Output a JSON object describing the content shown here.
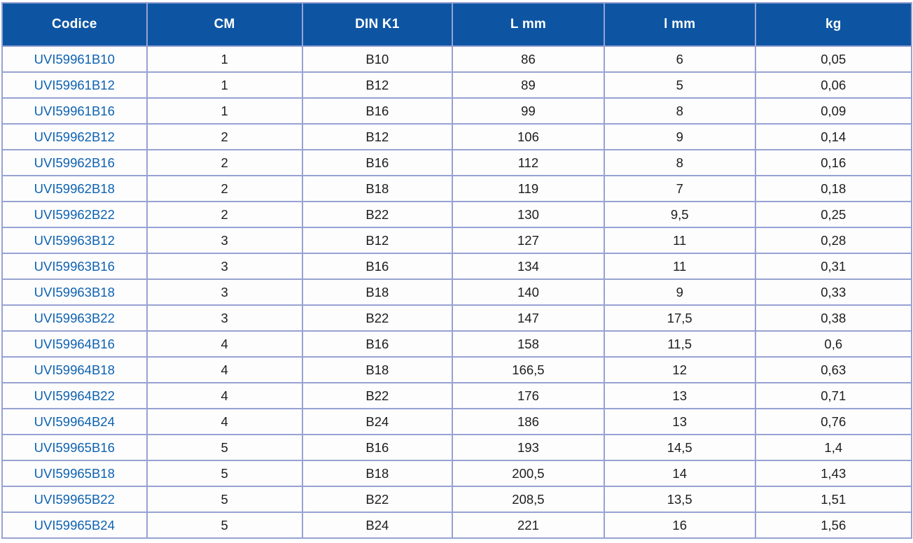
{
  "table": {
    "headers": [
      "Codice",
      "CM",
      "DIN K1",
      "L mm",
      "l mm",
      "kg"
    ],
    "rows": [
      [
        "UVI59961B10",
        "1",
        "B10",
        "86",
        "6",
        "0,05"
      ],
      [
        "UVI59961B12",
        "1",
        "B12",
        "89",
        "5",
        "0,06"
      ],
      [
        "UVI59961B16",
        "1",
        "B16",
        "99",
        "8",
        "0,09"
      ],
      [
        "UVI59962B12",
        "2",
        "B12",
        "106",
        "9",
        "0,14"
      ],
      [
        "UVI59962B16",
        "2",
        "B16",
        "112",
        "8",
        "0,16"
      ],
      [
        "UVI59962B18",
        "2",
        "B18",
        "119",
        "7",
        "0,18"
      ],
      [
        "UVI59962B22",
        "2",
        "B22",
        "130",
        "9,5",
        "0,25"
      ],
      [
        "UVI59963B12",
        "3",
        "B12",
        "127",
        "11",
        "0,28"
      ],
      [
        "UVI59963B16",
        "3",
        "B16",
        "134",
        "11",
        "0,31"
      ],
      [
        "UVI59963B18",
        "3",
        "B18",
        "140",
        "9",
        "0,33"
      ],
      [
        "UVI59963B22",
        "3",
        "B22",
        "147",
        "17,5",
        "0,38"
      ],
      [
        "UVI59964B16",
        "4",
        "B16",
        "158",
        "11,5",
        "0,6"
      ],
      [
        "UVI59964B18",
        "4",
        "B18",
        "166,5",
        "12",
        "0,63"
      ],
      [
        "UVI59964B22",
        "4",
        "B22",
        "176",
        "13",
        "0,71"
      ],
      [
        "UVI59964B24",
        "4",
        "B24",
        "186",
        "13",
        "0,76"
      ],
      [
        "UVI59965B16",
        "5",
        "B16",
        "193",
        "14,5",
        "1,4"
      ],
      [
        "UVI59965B18",
        "5",
        "B18",
        "200,5",
        "14",
        "1,43"
      ],
      [
        "UVI59965B22",
        "5",
        "B22",
        "208,5",
        "13,5",
        "1,51"
      ],
      [
        "UVI59965B24",
        "5",
        "B24",
        "221",
        "16",
        "1,56"
      ]
    ],
    "colors": {
      "header_bg": "#0d55a3",
      "header_text": "#ffffff",
      "grid_line": "#97a2d2",
      "code_link": "#0e62b0",
      "body_text": "#1d1d1f"
    }
  }
}
